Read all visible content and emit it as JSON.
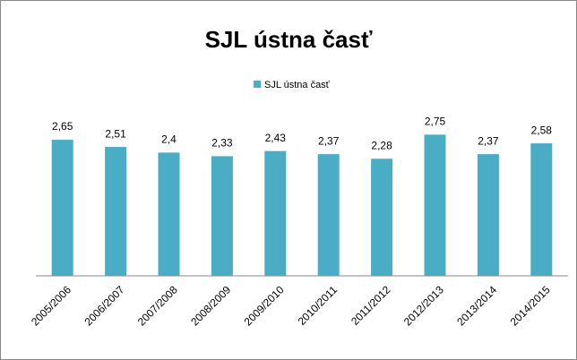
{
  "chart_data": {
    "type": "bar",
    "title": "SJL ústna časť",
    "series": [
      {
        "name": "SJL ústna časť",
        "color": "#4bacc6",
        "values": [
          2.65,
          2.51,
          2.4,
          2.33,
          2.43,
          2.37,
          2.28,
          2.75,
          2.37,
          2.58
        ],
        "value_labels": [
          "2,65",
          "2,51",
          "2,4",
          "2,33",
          "2,43",
          "2,37",
          "2,28",
          "2,75",
          "2,37",
          "2,58"
        ]
      }
    ],
    "categories": [
      "2005/2006",
      "2006/2007",
      "2007/2008",
      "2008/2009",
      "2009/2010",
      "2010/2011",
      "2011/2012",
      "2012/2013",
      "2013/2014",
      "2014/2015"
    ],
    "ylim": [
      0,
      3
    ],
    "legend": "top"
  }
}
